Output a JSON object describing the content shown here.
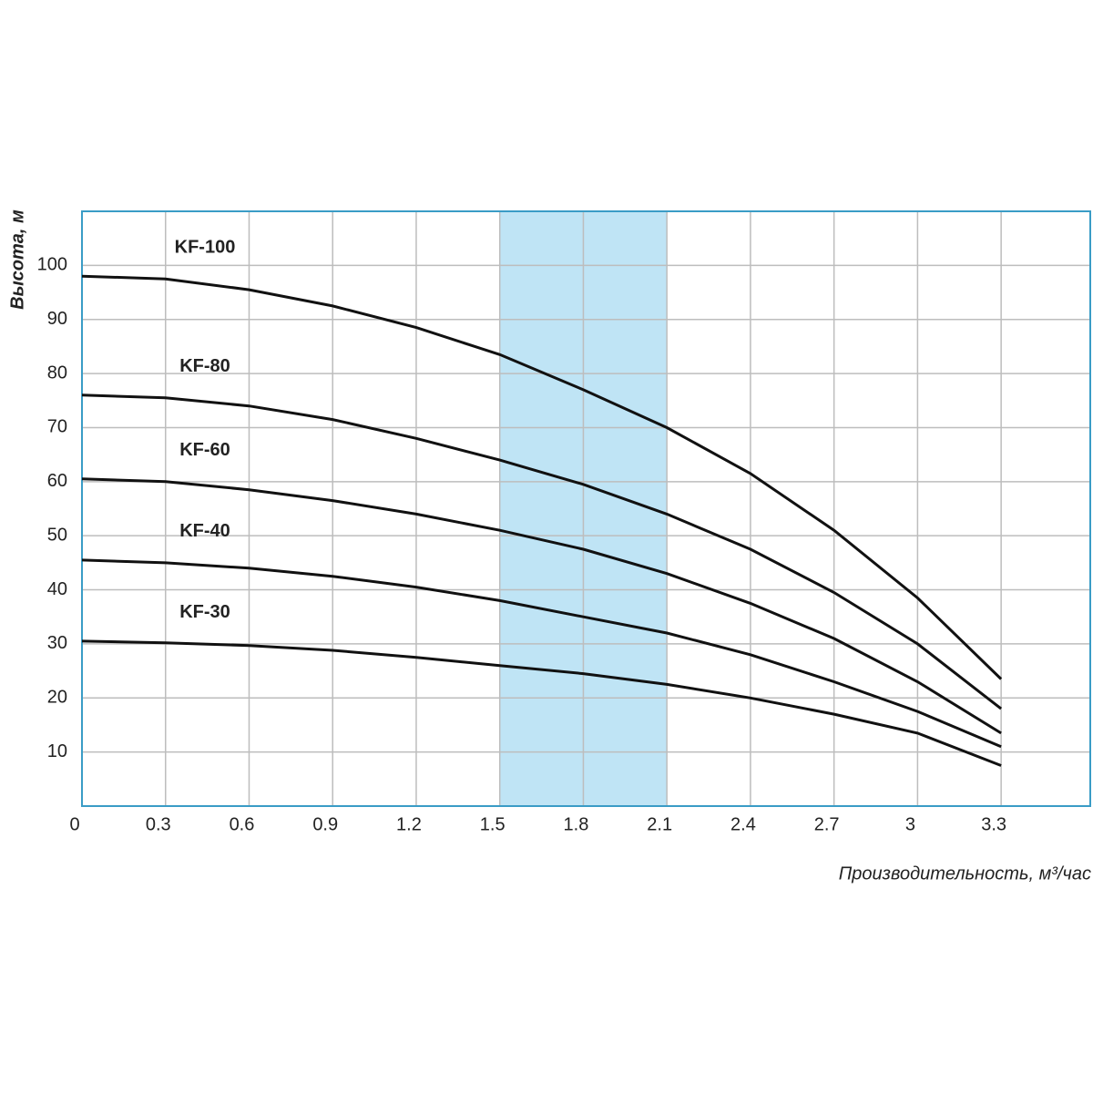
{
  "chart_data": {
    "type": "line",
    "y_label": "Высота, м",
    "x_label": "Производительность, м³/час",
    "x": [
      0,
      0.3,
      0.6,
      0.9,
      1.2,
      1.5,
      1.8,
      2.1,
      2.4,
      2.7,
      3,
      3.3
    ],
    "series": [
      {
        "name": "KF-100",
        "color": "#111111",
        "values": [
          98,
          97.5,
          95.5,
          92.5,
          88.5,
          83.5,
          77,
          70,
          61.5,
          51,
          38.5,
          23.5
        ]
      },
      {
        "name": "KF-80",
        "color": "#111111",
        "values": [
          76,
          75.5,
          74,
          71.5,
          68,
          64,
          59.5,
          54,
          47.5,
          39.5,
          30,
          18
        ]
      },
      {
        "name": "KF-60",
        "color": "#111111",
        "values": [
          60.5,
          60,
          58.5,
          56.5,
          54,
          51,
          47.5,
          43,
          37.5,
          31,
          23,
          13.5
        ]
      },
      {
        "name": "KF-40",
        "color": "#111111",
        "values": [
          45.5,
          45,
          44,
          42.5,
          40.5,
          38,
          35,
          32,
          28,
          23,
          17.5,
          11
        ]
      },
      {
        "name": "KF-30",
        "color": "#111111",
        "values": [
          30.5,
          30.2,
          29.7,
          28.8,
          27.5,
          26,
          24.5,
          22.5,
          20,
          17,
          13.5,
          7.5
        ]
      }
    ],
    "highlight_band": [
      1.5,
      2.1
    ],
    "highlight_color": "#bfe4f5",
    "xlim": [
      0,
      3.62
    ],
    "ylim": [
      0,
      110
    ],
    "xticks": [
      0,
      0.3,
      0.6,
      0.9,
      1.2,
      1.5,
      1.8,
      2.1,
      2.4,
      2.7,
      3,
      3.3
    ],
    "yticks": [
      10,
      20,
      30,
      40,
      50,
      60,
      70,
      80,
      90,
      100
    ],
    "grid": true
  }
}
